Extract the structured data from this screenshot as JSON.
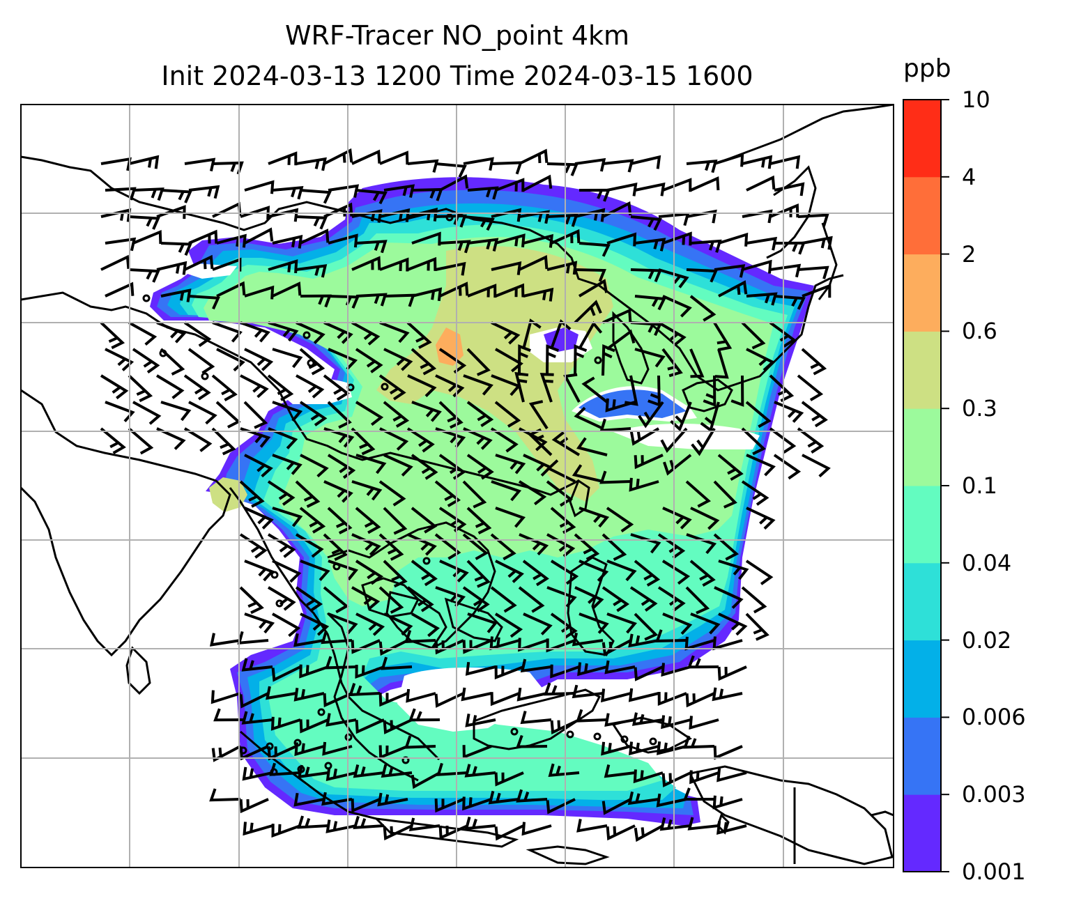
{
  "title": {
    "line1": "WRF-Tracer NO_point 4km",
    "line2": "Init 2024-03-13 1200 Time 2024-03-15 1600"
  },
  "colorbar": {
    "unit": "ppb",
    "levels": [
      {
        "label": "0.001",
        "color": "#6429ff"
      },
      {
        "label": "0.003",
        "color": "#3674f5"
      },
      {
        "label": "0.006",
        "color": "#03b0e8"
      },
      {
        "label": "0.02",
        "color": "#2ee0d8"
      },
      {
        "label": "0.04",
        "color": "#63fcc0"
      },
      {
        "label": "0.1",
        "color": "#9cfa9c"
      },
      {
        "label": "0.3",
        "color": "#cde083"
      },
      {
        "label": "0.6",
        "color": "#fdad5d"
      },
      {
        "label": "2",
        "color": "#ff6e39"
      },
      {
        "label": "4",
        "color": "#ff2d17"
      },
      {
        "label": "10",
        "color": null
      }
    ]
  }
}
